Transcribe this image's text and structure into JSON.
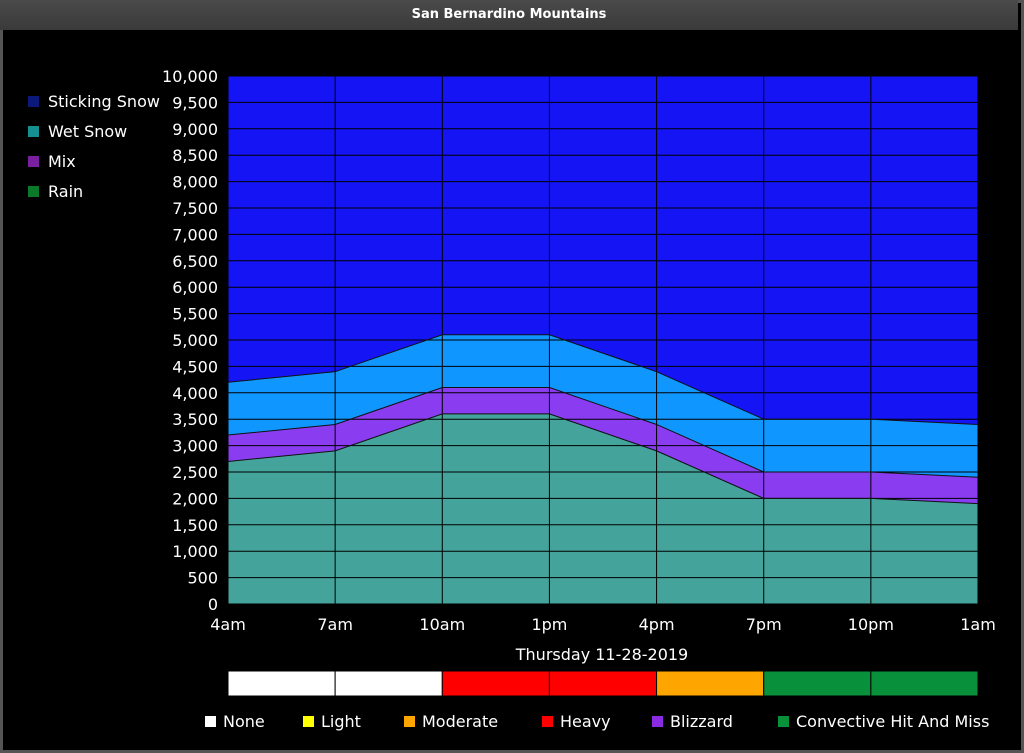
{
  "window": {
    "title": "San Bernardino Mountains"
  },
  "legend": [
    {
      "label": "Sticking Snow",
      "color": "#0b1a7a"
    },
    {
      "label": "Wet Snow",
      "color": "#159090"
    },
    {
      "label": "Mix",
      "color": "#7a1fa0"
    },
    {
      "label": "Rain",
      "color": "#0a7a2a"
    }
  ],
  "chart_data": {
    "type": "area",
    "categories": [
      "4am",
      "7am",
      "10am",
      "1pm",
      "4pm",
      "7pm",
      "10pm",
      "1am"
    ],
    "ylim": [
      0,
      10000
    ],
    "yticks": [
      "0",
      "500",
      "1,000",
      "1,500",
      "2,000",
      "2,500",
      "3,000",
      "3,500",
      "4,000",
      "4,500",
      "5,000",
      "5,500",
      "6,000",
      "6,500",
      "7,000",
      "7,500",
      "8,000",
      "8,500",
      "9,000",
      "9,500",
      "10,000"
    ],
    "ytick_values": [
      0,
      500,
      1000,
      1500,
      2000,
      2500,
      3000,
      3500,
      4000,
      4500,
      5000,
      5500,
      6000,
      6500,
      7000,
      7500,
      8000,
      8500,
      9000,
      9500,
      10000
    ],
    "series": [
      {
        "name": "Wet Snow",
        "values": [
          2700,
          2900,
          3600,
          3600,
          2900,
          2000,
          2000,
          1900
        ],
        "color": "#44a39a"
      },
      {
        "name": "Mix",
        "values": [
          3200,
          3400,
          4100,
          4100,
          3400,
          2500,
          2500,
          2400
        ],
        "color": "#8a3cf0"
      },
      {
        "name": "Sticking Snow",
        "values": [
          4200,
          4400,
          5100,
          5100,
          4400,
          3500,
          3500,
          3400
        ],
        "color": "#1096ff"
      }
    ],
    "top_color": "#1414f5",
    "xlabel": "Thursday 11-28-2019",
    "grid": true
  },
  "intensity_bar": [
    {
      "color": "#ffffff"
    },
    {
      "color": "#ffffff"
    },
    {
      "color": "#ff0000"
    },
    {
      "color": "#ff0000"
    },
    {
      "color": "#ffa500"
    },
    {
      "color": "#08903a"
    },
    {
      "color": "#08903a"
    }
  ],
  "intensity_legend": [
    {
      "label": "None",
      "color": "#ffffff"
    },
    {
      "label": "Light",
      "color": "#ffff00"
    },
    {
      "label": "Moderate",
      "color": "#ffa500"
    },
    {
      "label": "Heavy",
      "color": "#ff0000"
    },
    {
      "label": "Blizzard",
      "color": "#8a2be2"
    },
    {
      "label": "Convective Hit And Miss",
      "color": "#08903a"
    }
  ]
}
